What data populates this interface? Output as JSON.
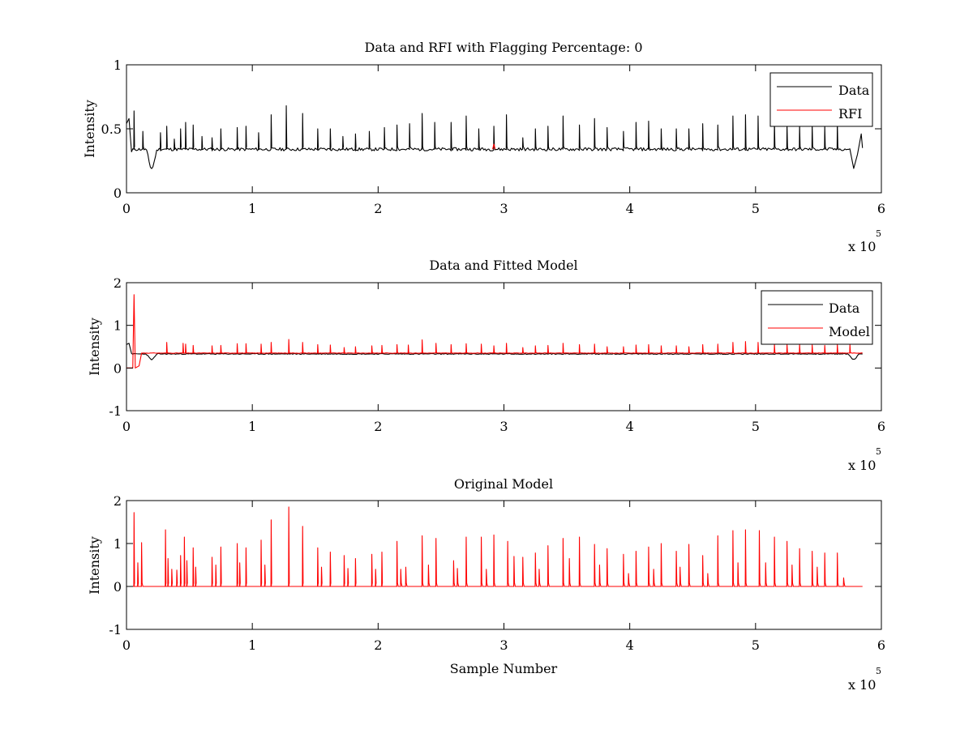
{
  "colors": {
    "data": "#000000",
    "rfi": "#ff0000",
    "model": "#ff0000",
    "axes": "#000000",
    "background": "#ffffff"
  },
  "chart_data": [
    {
      "type": "line",
      "title": "Data and RFI with Flagging Percentage: 0",
      "xlabel": "",
      "ylabel": "Intensity",
      "xlim": [
        0,
        6
      ],
      "ylim": [
        0,
        1
      ],
      "x_multiplier": "x 10",
      "x_multiplier_exponent": "5",
      "xticks": [
        0,
        1,
        2,
        3,
        4,
        5,
        6
      ],
      "yticks": [
        0,
        0.5,
        1
      ],
      "xtick_labels": [
        "0",
        "1",
        "2",
        "3",
        "4",
        "5",
        "6"
      ],
      "ytick_labels": [
        "0",
        "0.5",
        "1"
      ],
      "legend": {
        "position": "top-right",
        "entries": [
          "Data",
          "RFI"
        ]
      },
      "baseline": 0.34,
      "dips": [
        {
          "center": 0.2,
          "width": 0.05,
          "depth": 0.15
        },
        {
          "center": 5.78,
          "width": 0.05,
          "depth": 0.15
        }
      ],
      "start_segment": [
        {
          "x": 0.0,
          "y": 0.54
        },
        {
          "x": 0.02,
          "y": 0.58
        },
        {
          "x": 0.04,
          "y": 0.32
        }
      ],
      "peaks_x": [
        0.06,
        0.13,
        0.27,
        0.32,
        0.38,
        0.43,
        0.47,
        0.53,
        0.6,
        0.68,
        0.75,
        0.88,
        0.95,
        1.05,
        1.15,
        1.27,
        1.4,
        1.52,
        1.62,
        1.72,
        1.82,
        1.93,
        2.05,
        2.15,
        2.25,
        2.35,
        2.45,
        2.58,
        2.7,
        2.8,
        2.92,
        3.02,
        3.15,
        3.25,
        3.35,
        3.47,
        3.6,
        3.72,
        3.82,
        3.95,
        4.05,
        4.15,
        4.25,
        4.37,
        4.47,
        4.58,
        4.7,
        4.82,
        4.92,
        5.02,
        5.15,
        5.25,
        5.35,
        5.45,
        5.55,
        5.65,
        5.75
      ],
      "peaks_y": [
        0.64,
        0.48,
        0.47,
        0.52,
        0.42,
        0.5,
        0.55,
        0.53,
        0.44,
        0.43,
        0.5,
        0.51,
        0.52,
        0.47,
        0.61,
        0.68,
        0.62,
        0.5,
        0.5,
        0.44,
        0.46,
        0.48,
        0.51,
        0.53,
        0.54,
        0.62,
        0.55,
        0.55,
        0.6,
        0.5,
        0.52,
        0.61,
        0.43,
        0.5,
        0.52,
        0.6,
        0.53,
        0.58,
        0.51,
        0.48,
        0.55,
        0.56,
        0.5,
        0.5,
        0.5,
        0.54,
        0.53,
        0.6,
        0.61,
        0.6,
        0.56,
        0.53,
        0.53,
        0.53,
        0.52,
        0.55,
        0.53
      ],
      "end_segment": [
        {
          "x": 5.75,
          "y": 0.34
        },
        {
          "x": 5.78,
          "y": 0.19
        },
        {
          "x": 5.81,
          "y": 0.3
        },
        {
          "x": 5.84,
          "y": 0.46
        },
        {
          "x": 5.85,
          "y": 0.35
        }
      ],
      "rfi_points": [
        {
          "x": 2.91,
          "y": 0.34
        },
        {
          "x": 2.92,
          "y": 0.38
        },
        {
          "x": 2.93,
          "y": 0.34
        }
      ]
    },
    {
      "type": "line",
      "title": "Data and Fitted Model",
      "xlabel": "",
      "ylabel": "Intensity",
      "xlim": [
        0,
        6
      ],
      "ylim": [
        -1,
        2
      ],
      "x_multiplier": "x 10",
      "x_multiplier_exponent": "5",
      "xticks": [
        0,
        1,
        2,
        3,
        4,
        5,
        6
      ],
      "yticks": [
        -1,
        0,
        1,
        2
      ],
      "xtick_labels": [
        "0",
        "1",
        "2",
        "3",
        "4",
        "5",
        "6"
      ],
      "ytick_labels": [
        "-1",
        "0",
        "1",
        "2"
      ],
      "legend": {
        "position": "top-right",
        "entries": [
          "Data",
          "Model"
        ]
      },
      "data_baseline": 0.33,
      "model_baseline": 0.35,
      "data_start": [
        {
          "x": 0.0,
          "y": 0.55
        },
        {
          "x": 0.02,
          "y": 0.58
        },
        {
          "x": 0.04,
          "y": 0.34
        }
      ],
      "data_dips": [
        {
          "center": 0.2,
          "width": 0.05,
          "depth": 0.13
        },
        {
          "center": 5.78,
          "width": 0.05,
          "depth": 0.13
        }
      ],
      "model_start": [
        {
          "x": 0.0,
          "y": 0.0
        },
        {
          "x": 0.05,
          "y": 0.0
        },
        {
          "x": 0.06,
          "y": 1.72
        },
        {
          "x": 0.07,
          "y": 0.0
        },
        {
          "x": 0.1,
          "y": 0.05
        },
        {
          "x": 0.12,
          "y": 0.35
        }
      ],
      "model_peaks_x": [
        0.32,
        0.45,
        0.47,
        0.53,
        0.68,
        0.75,
        0.88,
        0.95,
        1.07,
        1.15,
        1.29,
        1.4,
        1.52,
        1.62,
        1.73,
        1.82,
        1.95,
        2.03,
        2.15,
        2.24,
        2.35,
        2.46,
        2.58,
        2.7,
        2.82,
        2.92,
        3.02,
        3.15,
        3.25,
        3.35,
        3.47,
        3.6,
        3.72,
        3.82,
        3.95,
        4.05,
        4.15,
        4.25,
        4.37,
        4.47,
        4.58,
        4.7,
        4.82,
        4.92,
        5.02,
        5.15,
        5.25,
        5.35,
        5.45,
        5.55,
        5.65,
        5.75
      ],
      "model_peaks_y": [
        0.6,
        0.58,
        0.56,
        0.53,
        0.52,
        0.53,
        0.57,
        0.57,
        0.56,
        0.6,
        0.67,
        0.6,
        0.55,
        0.54,
        0.48,
        0.5,
        0.52,
        0.53,
        0.55,
        0.54,
        0.66,
        0.58,
        0.55,
        0.57,
        0.56,
        0.52,
        0.58,
        0.48,
        0.52,
        0.53,
        0.58,
        0.55,
        0.56,
        0.5,
        0.5,
        0.54,
        0.55,
        0.52,
        0.52,
        0.5,
        0.55,
        0.56,
        0.6,
        0.62,
        0.6,
        0.55,
        0.55,
        0.55,
        0.54,
        0.53,
        0.55,
        0.55
      ],
      "model_end_x": 5.85
    },
    {
      "type": "line",
      "title": "Original Model",
      "xlabel": "Sample Number",
      "ylabel": "Intensity",
      "xlim": [
        0,
        6
      ],
      "ylim": [
        -1,
        2
      ],
      "x_multiplier": "x 10",
      "x_multiplier_exponent": "5",
      "xticks": [
        0,
        1,
        2,
        3,
        4,
        5,
        6
      ],
      "yticks": [
        -1,
        0,
        1,
        2
      ],
      "xtick_labels": [
        "0",
        "1",
        "2",
        "3",
        "4",
        "5",
        "6"
      ],
      "ytick_labels": [
        "-1",
        "0",
        "1",
        "2"
      ],
      "baseline": 0.0,
      "peaks_x": [
        0.06,
        0.09,
        0.12,
        0.31,
        0.33,
        0.36,
        0.4,
        0.43,
        0.46,
        0.48,
        0.53,
        0.55,
        0.68,
        0.71,
        0.75,
        0.88,
        0.9,
        0.95,
        1.07,
        1.1,
        1.15,
        1.29,
        1.4,
        1.52,
        1.55,
        1.62,
        1.73,
        1.76,
        1.82,
        1.95,
        1.98,
        2.03,
        2.15,
        2.18,
        2.22,
        2.35,
        2.4,
        2.46,
        2.6,
        2.63,
        2.7,
        2.82,
        2.86,
        2.92,
        3.03,
        3.08,
        3.15,
        3.25,
        3.28,
        3.35,
        3.47,
        3.52,
        3.6,
        3.72,
        3.76,
        3.82,
        3.95,
        3.99,
        4.05,
        4.15,
        4.19,
        4.25,
        4.37,
        4.4,
        4.47,
        4.58,
        4.62,
        4.7,
        4.82,
        4.86,
        4.92,
        5.03,
        5.08,
        5.15,
        5.25,
        5.29,
        5.35,
        5.45,
        5.49,
        5.55,
        5.65,
        5.7
      ],
      "peaks_y": [
        1.72,
        0.55,
        1.02,
        1.32,
        0.65,
        0.4,
        0.38,
        0.72,
        1.15,
        0.6,
        0.9,
        0.45,
        0.68,
        0.5,
        0.92,
        1.0,
        0.55,
        0.9,
        1.08,
        0.5,
        1.55,
        1.85,
        1.4,
        0.9,
        0.45,
        0.8,
        0.72,
        0.42,
        0.65,
        0.75,
        0.4,
        0.8,
        1.05,
        0.4,
        0.45,
        1.18,
        0.5,
        1.12,
        0.6,
        0.42,
        1.15,
        1.15,
        0.4,
        1.2,
        1.05,
        0.7,
        0.68,
        0.78,
        0.4,
        0.95,
        1.12,
        0.65,
        1.15,
        0.98,
        0.5,
        0.88,
        0.75,
        0.3,
        0.82,
        0.92,
        0.4,
        1.0,
        0.82,
        0.45,
        0.98,
        0.72,
        0.3,
        1.18,
        1.3,
        0.55,
        1.32,
        1.3,
        0.55,
        1.15,
        1.05,
        0.5,
        0.88,
        0.82,
        0.45,
        0.78,
        0.78,
        0.2
      ],
      "end_x": 5.85
    }
  ]
}
